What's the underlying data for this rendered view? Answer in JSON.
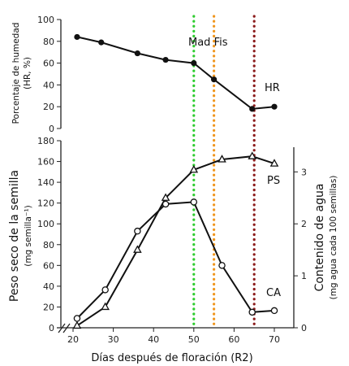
{
  "chart_data": [
    {
      "type": "line",
      "panel": "top",
      "ylabel": "Porcentaje de humedad",
      "ylabel_unit": "(HR, %)",
      "ylim": [
        0,
        100
      ],
      "yticks": [
        0,
        20,
        40,
        60,
        80,
        100
      ],
      "series": [
        {
          "name": "HR",
          "marker": "filled-circle",
          "x": [
            21,
            27,
            36,
            43,
            50,
            55,
            64.5,
            70
          ],
          "y": [
            84,
            79,
            69,
            63,
            60,
            45,
            18,
            20
          ]
        }
      ],
      "annotations": [
        "Mad Fis",
        "HR"
      ]
    },
    {
      "type": "line",
      "panel": "bottom",
      "xlabel": "Días después de floración (R2)",
      "xlim": [
        15,
        73
      ],
      "xticks": [
        20,
        30,
        40,
        50,
        60,
        70
      ],
      "ylabel": "Peso seco de la semilla",
      "ylabel_unit": "(mg semilla⁻¹)",
      "ylim": [
        0,
        180
      ],
      "yticks": [
        0,
        20,
        40,
        60,
        80,
        100,
        120,
        140,
        160,
        180
      ],
      "y2label": "Contenido de agua",
      "y2label_unit": "(mg agua cada 100 semillas)",
      "y2lim": [
        0,
        3.6
      ],
      "y2ticks": [
        0,
        1,
        2,
        3
      ],
      "series": [
        {
          "name": "PS",
          "axis": "left",
          "marker": "open-triangle",
          "x": [
            21,
            28,
            36,
            43,
            50,
            57,
            64.5,
            70
          ],
          "y": [
            2,
            20,
            75,
            125,
            152,
            162,
            165,
            158
          ]
        },
        {
          "name": "CA",
          "axis": "right",
          "marker": "open-circle",
          "x": [
            21,
            28,
            36,
            43,
            50,
            57,
            64.5,
            70
          ],
          "y": [
            0.18,
            0.73,
            1.86,
            2.38,
            2.42,
            1.2,
            0.3,
            0.33
          ]
        }
      ]
    }
  ],
  "vlines": [
    {
      "x": 50,
      "color": "#2ecc2e"
    },
    {
      "x": 55,
      "color": "#f0961e"
    },
    {
      "x": 65,
      "color": "#8b1a1a"
    }
  ],
  "labels": {
    "mad_fis": "Mad Fis",
    "hr": "HR",
    "ps": "PS",
    "ca": "CA",
    "top_ylabel_1": "Porcentaje de humedad",
    "top_ylabel_2": "(HR, %)",
    "bottom_ylabel_1": "Peso seco de la semilla",
    "bottom_ylabel_2": "(mg semilla⁻¹)",
    "right_ylabel_1": "Contenido de agua",
    "right_ylabel_2": "(mg agua cada 100 semillas)",
    "xlabel": "Días después de floración (R2)"
  }
}
